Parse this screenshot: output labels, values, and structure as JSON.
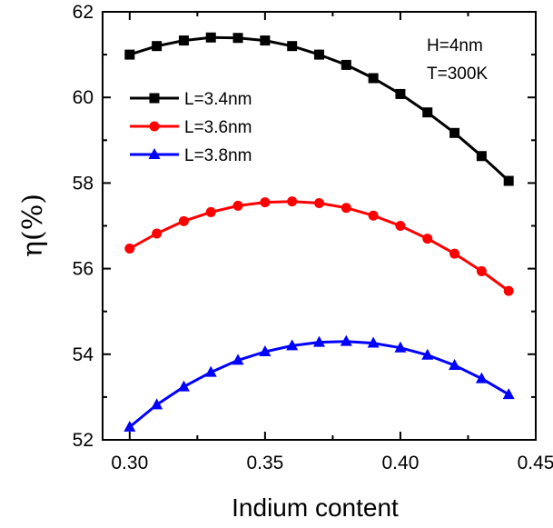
{
  "chart_data": {
    "type": "line",
    "title": "",
    "xlabel": "Indium content",
    "ylabel": "η(%)",
    "xlim": [
      0.29,
      0.45
    ],
    "ylim": [
      52,
      62
    ],
    "xticks": [
      0.3,
      0.35,
      0.4,
      0.45
    ],
    "xtick_labels": [
      "0.30",
      "0.35",
      "0.40",
      "0.45"
    ],
    "yticks": [
      52,
      54,
      56,
      58,
      60,
      62
    ],
    "ytick_labels": [
      "52",
      "54",
      "56",
      "58",
      "60",
      "62"
    ],
    "x": [
      0.3,
      0.31,
      0.32,
      0.33,
      0.34,
      0.35,
      0.36,
      0.37,
      0.38,
      0.39,
      0.4,
      0.41,
      0.42,
      0.43,
      0.44
    ],
    "series": [
      {
        "name": "L=3.4nm",
        "color": "#000000",
        "marker": "square",
        "values": [
          61.0,
          61.2,
          61.33,
          61.4,
          61.39,
          61.33,
          61.2,
          61.0,
          60.76,
          60.45,
          60.08,
          59.65,
          59.17,
          58.63,
          58.05
        ]
      },
      {
        "name": "L=3.6nm",
        "color": "#ff0000",
        "marker": "circle",
        "values": [
          56.47,
          56.82,
          57.11,
          57.32,
          57.47,
          57.55,
          57.57,
          57.53,
          57.42,
          57.24,
          57.0,
          56.7,
          56.35,
          55.94,
          55.48
        ]
      },
      {
        "name": "L=3.8nm",
        "color": "#0000ff",
        "marker": "triangle",
        "values": [
          52.3,
          52.82,
          53.24,
          53.58,
          53.86,
          54.06,
          54.2,
          54.28,
          54.3,
          54.26,
          54.15,
          53.98,
          53.74,
          53.43,
          53.06
        ]
      }
    ],
    "annotations": [
      "H=4nm",
      "T=300K"
    ],
    "legend_position": "upper-left",
    "grid": false
  }
}
